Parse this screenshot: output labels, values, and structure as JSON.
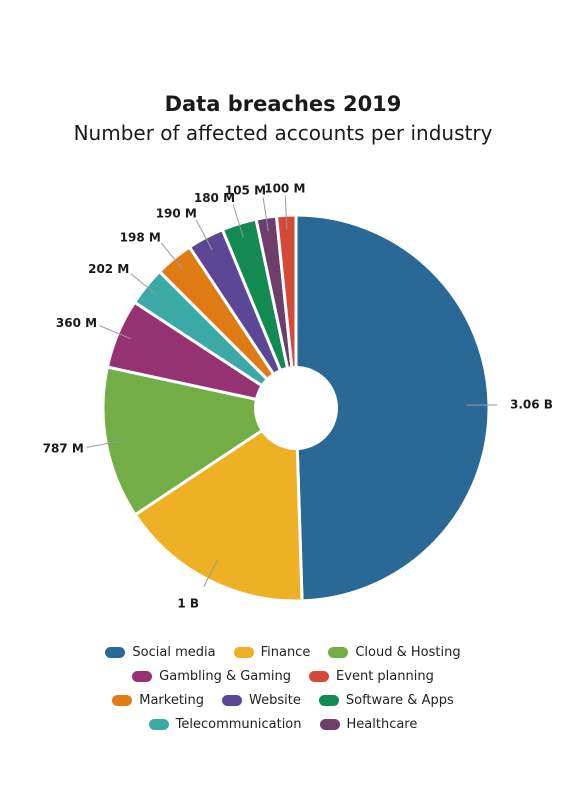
{
  "chart_data": {
    "type": "pie",
    "title": "Data breaches 2019",
    "subtitle": "Number of affected accounts per industry",
    "slices": [
      {
        "name": "Social media",
        "value": 3060,
        "label": "3.06 B",
        "color": "#2a6896"
      },
      {
        "name": "Finance",
        "value": 1000,
        "label": "1 B",
        "color": "#eeb024"
      },
      {
        "name": "Cloud & Hosting",
        "value": 787,
        "label": "787 M",
        "color": "#72ad45"
      },
      {
        "name": "Gambling & Gaming",
        "value": 360,
        "label": "360 M",
        "color": "#953372"
      },
      {
        "name": "Telecommunication",
        "value": 202,
        "label": "202 M",
        "color": "#3ba9a6"
      },
      {
        "name": "Marketing",
        "value": 198,
        "label": "198 M",
        "color": "#e07b13"
      },
      {
        "name": "Website",
        "value": 190,
        "label": "190 M",
        "color": "#5b4796"
      },
      {
        "name": "Software & Apps",
        "value": 180,
        "label": "180 M",
        "color": "#138a52"
      },
      {
        "name": "Healthcare",
        "value": 105,
        "label": "105 M",
        "color": "#6d3d6c"
      },
      {
        "name": "Event planning",
        "value": 100,
        "label": "100 M",
        "color": "#d5493a"
      }
    ],
    "legend_rows": [
      [
        "Social media",
        "Finance",
        "Cloud & Hosting"
      ],
      [
        "Gambling & Gaming",
        "Event planning"
      ],
      [
        "Marketing",
        "Website",
        "Software & Apps"
      ],
      [
        "Telecommunication",
        "Healthcare"
      ]
    ],
    "legend_position": "bottom",
    "donut": true
  }
}
